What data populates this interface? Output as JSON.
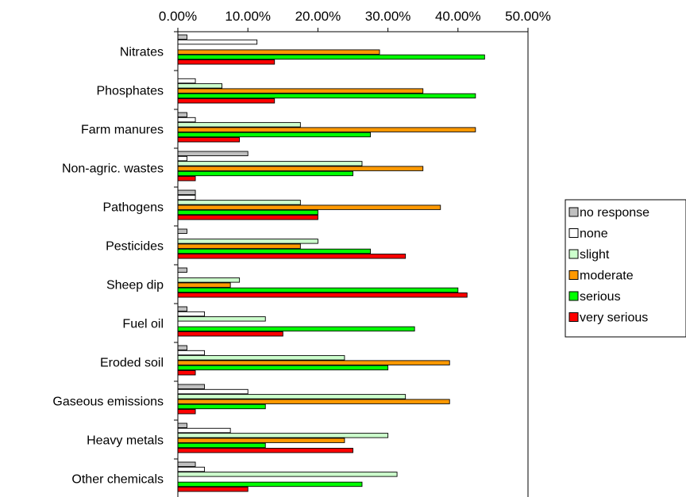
{
  "chart_data": {
    "type": "bar",
    "orientation": "horizontal",
    "title": "",
    "xlabel": "",
    "ylabel": "",
    "xlim": [
      0,
      50
    ],
    "x_ticks": [
      "0.00%",
      "10.00%",
      "20.00%",
      "30.00%",
      "40.00%",
      "50.00%"
    ],
    "x_axis_position": "top",
    "grid": false,
    "legend_position": "right",
    "categories": [
      "Nitrates",
      "Phosphates",
      "Farm manures",
      "Non-agric. wastes",
      "Pathogens",
      "Pesticides",
      "Sheep dip",
      "Fuel oil",
      "Eroded soil",
      "Gaseous emissions",
      "Heavy metals",
      "Other chemicals"
    ],
    "series": [
      {
        "name": "no response",
        "color": "#c0c0c0",
        "values": [
          1.3,
          0,
          1.3,
          10.0,
          2.5,
          1.3,
          1.3,
          1.3,
          1.3,
          3.8,
          1.3,
          2.5
        ]
      },
      {
        "name": "none",
        "color": "#ffffff",
        "values": [
          11.3,
          2.5,
          2.5,
          1.3,
          2.5,
          0,
          0,
          3.8,
          3.8,
          10.0,
          7.5,
          3.8
        ]
      },
      {
        "name": "slight",
        "color": "#ccffcc",
        "values": [
          0,
          6.3,
          17.5,
          26.3,
          17.5,
          20.0,
          8.8,
          12.5,
          23.8,
          32.5,
          30.0,
          31.3
        ]
      },
      {
        "name": "moderate",
        "color": "#ff9900",
        "values": [
          28.8,
          35.0,
          42.5,
          35.0,
          37.5,
          17.5,
          7.5,
          0,
          38.8,
          38.8,
          23.8,
          0
        ]
      },
      {
        "name": "serious",
        "color": "#00ff00",
        "values": [
          43.8,
          42.5,
          27.5,
          25.0,
          20.0,
          27.5,
          40.0,
          33.8,
          30.0,
          12.5,
          12.5,
          26.3
        ]
      },
      {
        "name": "very serious",
        "color": "#ff0000",
        "values": [
          13.8,
          13.8,
          8.8,
          2.5,
          20.0,
          32.5,
          41.3,
          15.0,
          2.5,
          2.5,
          25.0,
          10.0
        ]
      }
    ]
  }
}
